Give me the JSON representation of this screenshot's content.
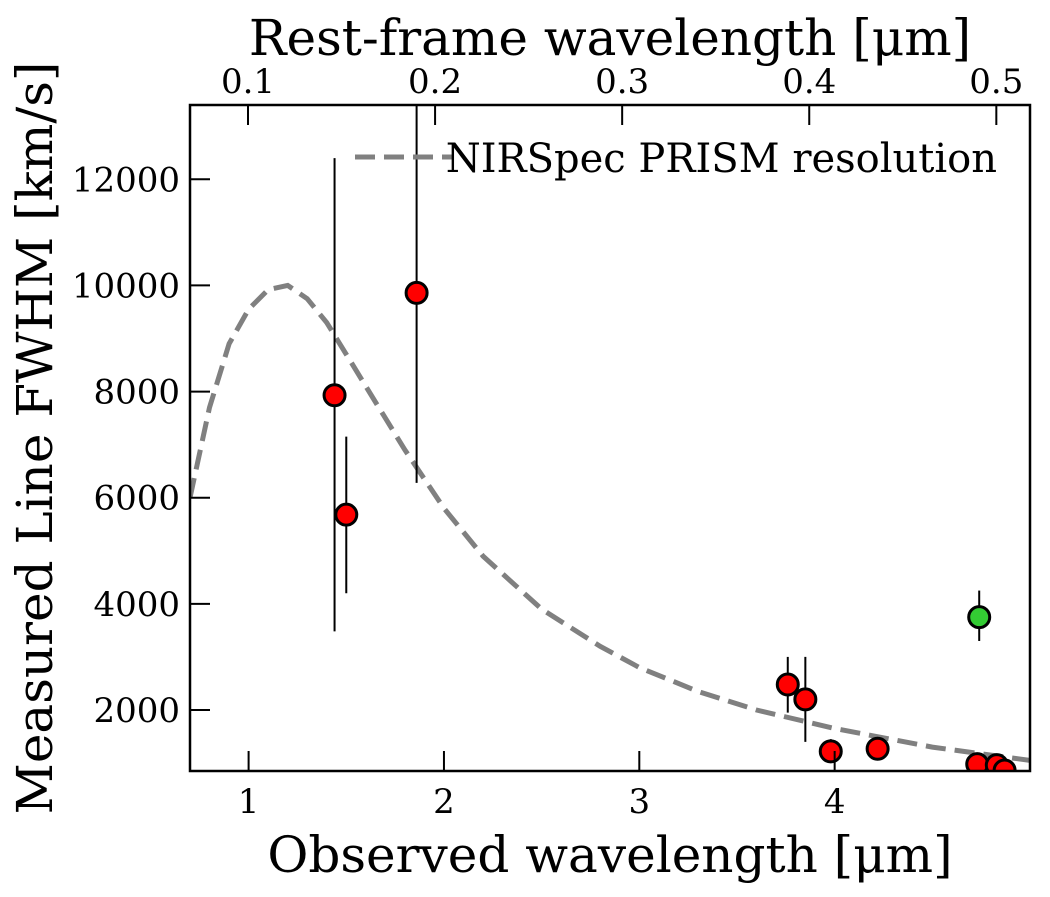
{
  "chart_data": {
    "type": "scatter",
    "xlabel": "Observed wavelength [μm]",
    "ylabel": "Measured Line FWHM [km/s]",
    "top_xlabel": "Rest-frame wavelength [μm]",
    "xlim": [
      0.7,
      5.0
    ],
    "ylim": [
      850,
      13400
    ],
    "top_xlim": [
      0.069,
      0.518
    ],
    "x_ticks": [
      {
        "value": 1,
        "label": "1"
      },
      {
        "value": 2,
        "label": "2"
      },
      {
        "value": 3,
        "label": "3"
      },
      {
        "value": 4,
        "label": "4"
      }
    ],
    "y_ticks": [
      {
        "value": 2000,
        "label": "2000"
      },
      {
        "value": 4000,
        "label": "4000"
      },
      {
        "value": 6000,
        "label": "6000"
      },
      {
        "value": 8000,
        "label": "8000"
      },
      {
        "value": 10000,
        "label": "10000"
      },
      {
        "value": 12000,
        "label": "12000"
      }
    ],
    "top_ticks": [
      {
        "value": 0.1,
        "label": "0.1"
      },
      {
        "value": 0.2,
        "label": "0.2"
      },
      {
        "value": 0.3,
        "label": "0.3"
      },
      {
        "value": 0.4,
        "label": "0.4"
      },
      {
        "value": 0.5,
        "label": "0.5"
      }
    ],
    "legend": {
      "label": "NIRSpec PRISM resolution",
      "location": "top-right"
    },
    "resolution_curve": {
      "name": "NIRSpec PRISM resolution",
      "color": "#808080",
      "style": "dashed",
      "x": [
        0.7,
        0.8,
        0.9,
        1.0,
        1.1,
        1.2,
        1.3,
        1.4,
        1.5,
        1.6,
        1.8,
        2.0,
        2.2,
        2.5,
        2.8,
        3.0,
        3.3,
        3.6,
        4.0,
        4.5,
        5.0
      ],
      "y": [
        6000,
        7700,
        8900,
        9550,
        9920,
        10000,
        9750,
        9300,
        8700,
        8100,
        6900,
        5800,
        4900,
        3900,
        3200,
        2800,
        2350,
        2000,
        1650,
        1300,
        1050
      ]
    },
    "series": [
      {
        "name": "red points",
        "color": "#ff0000",
        "points": [
          {
            "x": 1.44,
            "y": 7930,
            "yerr_low": 3480,
            "yerr_high": 12400
          },
          {
            "x": 1.5,
            "y": 5680,
            "yerr_low": 4200,
            "yerr_high": 7150
          },
          {
            "x": 1.86,
            "y": 9860,
            "yerr_low": 6280,
            "yerr_high": 13400
          },
          {
            "x": 3.76,
            "y": 2480,
            "yerr_low": 1950,
            "yerr_high": 3000
          },
          {
            "x": 3.85,
            "y": 2200,
            "yerr_low": 1400,
            "yerr_high": 3000
          },
          {
            "x": 3.98,
            "y": 1220,
            "yerr_low": 1000,
            "yerr_high": 1450
          },
          {
            "x": 4.22,
            "y": 1270,
            "yerr_low": 1100,
            "yerr_high": 1450
          },
          {
            "x": 4.73,
            "y": 980,
            "yerr_low": 900,
            "yerr_high": 1080
          },
          {
            "x": 4.83,
            "y": 960,
            "yerr_low": 880,
            "yerr_high": 1050
          },
          {
            "x": 4.87,
            "y": 860,
            "yerr_low": 800,
            "yerr_high": 940
          }
        ]
      },
      {
        "name": "green point",
        "color": "#33cc33",
        "points": [
          {
            "x": 4.74,
            "y": 3750,
            "yerr_low": 3300,
            "yerr_high": 4250
          }
        ]
      }
    ]
  }
}
